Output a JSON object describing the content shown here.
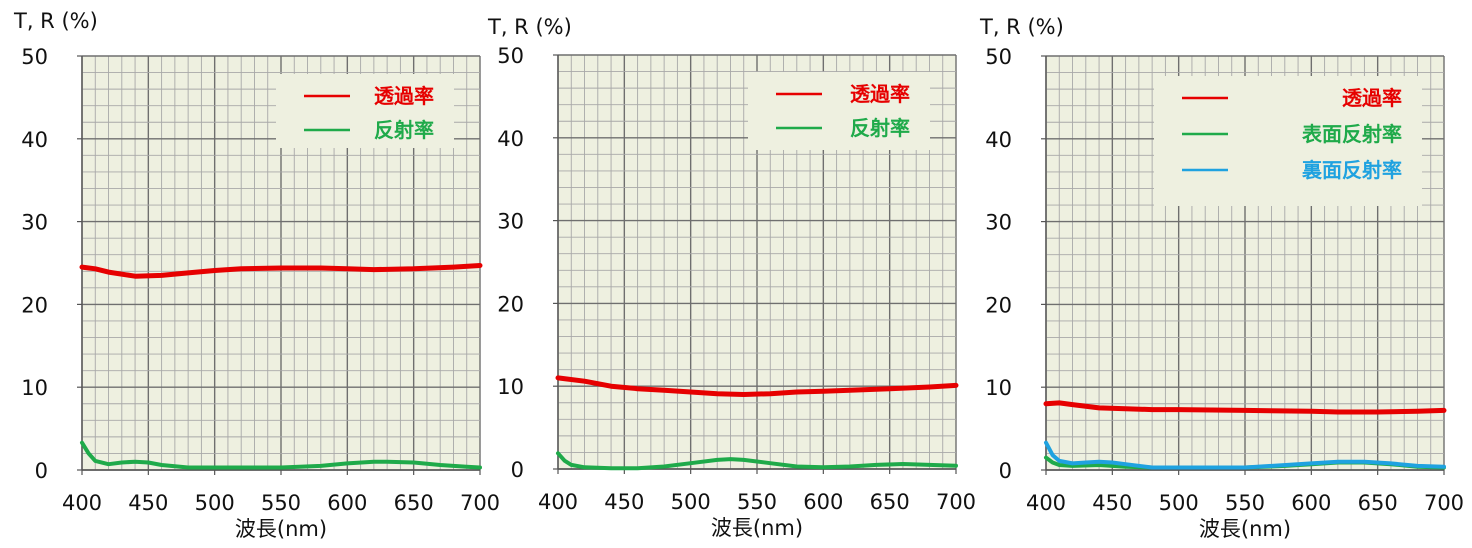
{
  "chart_data": [
    {
      "type": "line",
      "ylabel": "T, R (%)",
      "xlabel": "波長(nm)",
      "xlim": [
        400,
        700
      ],
      "ylim": [
        0,
        50
      ],
      "xticks": [
        400,
        450,
        500,
        550,
        600,
        650,
        700
      ],
      "yticks": [
        0,
        10,
        20,
        30,
        40,
        50
      ],
      "grid": true,
      "legend_position": "top-right",
      "series": [
        {
          "name": "透過率",
          "color": "#e60000",
          "x": [
            400,
            410,
            420,
            440,
            460,
            480,
            500,
            520,
            550,
            580,
            600,
            620,
            650,
            680,
            700
          ],
          "y": [
            24.5,
            24.3,
            23.9,
            23.4,
            23.5,
            23.8,
            24.1,
            24.3,
            24.4,
            24.4,
            24.3,
            24.2,
            24.3,
            24.5,
            24.7
          ]
        },
        {
          "name": "反射率",
          "color": "#1faa4a",
          "x": [
            400,
            405,
            410,
            420,
            430,
            440,
            450,
            460,
            480,
            500,
            550,
            580,
            600,
            620,
            630,
            650,
            670,
            690,
            700
          ],
          "y": [
            3.3,
            2.0,
            1.1,
            0.7,
            0.9,
            1.0,
            0.9,
            0.6,
            0.3,
            0.3,
            0.3,
            0.5,
            0.8,
            1.0,
            1.0,
            0.9,
            0.6,
            0.4,
            0.3
          ]
        }
      ]
    },
    {
      "type": "line",
      "ylabel": "T, R (%)",
      "xlabel": "波長(nm)",
      "xlim": [
        400,
        700
      ],
      "ylim": [
        0,
        50
      ],
      "xticks": [
        400,
        450,
        500,
        550,
        600,
        650,
        700
      ],
      "yticks": [
        0,
        10,
        20,
        30,
        40,
        50
      ],
      "grid": true,
      "legend_position": "top-right",
      "series": [
        {
          "name": "透過率",
          "color": "#e60000",
          "x": [
            400,
            420,
            440,
            460,
            480,
            500,
            520,
            540,
            560,
            580,
            600,
            620,
            650,
            680,
            700
          ],
          "y": [
            11.0,
            10.6,
            10.0,
            9.7,
            9.5,
            9.3,
            9.1,
            9.0,
            9.1,
            9.3,
            9.4,
            9.5,
            9.7,
            9.9,
            10.1
          ]
        },
        {
          "name": "反射率",
          "color": "#1faa4a",
          "x": [
            400,
            405,
            410,
            420,
            440,
            460,
            480,
            500,
            520,
            530,
            540,
            560,
            580,
            600,
            620,
            640,
            660,
            680,
            700
          ],
          "y": [
            1.9,
            1.0,
            0.5,
            0.2,
            0.1,
            0.1,
            0.3,
            0.7,
            1.1,
            1.2,
            1.1,
            0.7,
            0.3,
            0.2,
            0.3,
            0.5,
            0.6,
            0.5,
            0.4
          ]
        }
      ]
    },
    {
      "type": "line",
      "ylabel": "T, R (%)",
      "xlabel": "波長(nm)",
      "xlim": [
        400,
        700
      ],
      "ylim": [
        0,
        50
      ],
      "xticks": [
        400,
        450,
        500,
        550,
        600,
        650,
        700
      ],
      "yticks": [
        0,
        10,
        20,
        30,
        40,
        50
      ],
      "grid": true,
      "legend_position": "top-right",
      "series": [
        {
          "name": "透過率",
          "color": "#e60000",
          "x": [
            400,
            410,
            420,
            440,
            460,
            480,
            500,
            550,
            600,
            620,
            650,
            680,
            700
          ],
          "y": [
            8.0,
            8.1,
            7.9,
            7.5,
            7.4,
            7.3,
            7.3,
            7.2,
            7.1,
            7.0,
            7.0,
            7.1,
            7.2
          ]
        },
        {
          "name": "表面反射率",
          "color": "#1faa4a",
          "x": [
            400,
            405,
            410,
            420,
            440,
            460,
            480,
            500,
            550,
            580,
            600,
            620,
            640,
            660,
            680,
            700
          ],
          "y": [
            1.5,
            0.9,
            0.6,
            0.5,
            0.6,
            0.4,
            0.3,
            0.3,
            0.3,
            0.5,
            0.7,
            0.9,
            0.9,
            0.7,
            0.4,
            0.3
          ]
        },
        {
          "name": "裏面反射率",
          "color": "#1fa2e0",
          "x": [
            400,
            405,
            410,
            420,
            430,
            440,
            450,
            460,
            480,
            500,
            550,
            600,
            620,
            640,
            660,
            680,
            700
          ],
          "y": [
            3.3,
            1.8,
            1.1,
            0.8,
            0.9,
            1.0,
            0.9,
            0.7,
            0.3,
            0.3,
            0.3,
            0.8,
            1.0,
            1.0,
            0.8,
            0.5,
            0.4
          ]
        }
      ]
    }
  ]
}
